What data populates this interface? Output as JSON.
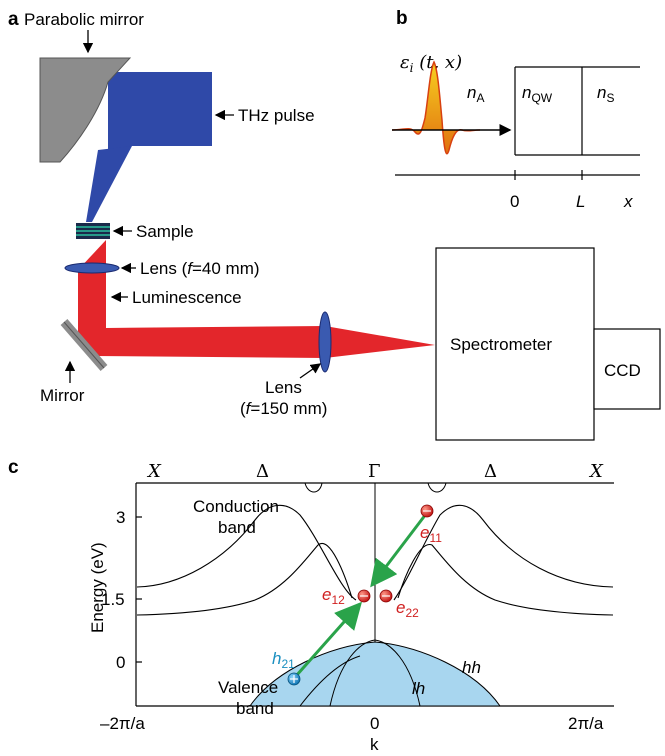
{
  "panel_a": {
    "label": "a",
    "parabolic_mirror": "Parabolic mirror",
    "thz_pulse": "THz pulse",
    "sample": "Sample",
    "lens1_prefix": "Lens (",
    "lens1_var": "f",
    "lens1_suffix": "=40 mm)",
    "luminescence": "Luminescence",
    "mirror": "Mirror",
    "lens2_line1": "Lens",
    "lens2_prefix": "(",
    "lens2_var": "f",
    "lens2_suffix": "=150 mm)",
    "spectrometer": "Spectrometer",
    "ccd": "CCD"
  },
  "panel_b": {
    "label": "b",
    "field_eps": "ε",
    "field_sub": "i",
    "field_args": " (t, x)",
    "n_a": "n",
    "n_a_sub": "A",
    "n_qw": "n",
    "n_qw_sub": "QW",
    "n_s": "n",
    "n_s_sub": "S",
    "tick_0": "0",
    "tick_L": "L",
    "axis_x": "x"
  },
  "panel_c": {
    "label": "c",
    "top_labels": [
      "X",
      "Δ",
      "Γ",
      "Δ",
      "X"
    ],
    "ylabel": "Energy (eV)",
    "yticks": [
      "3",
      "1.5",
      "0"
    ],
    "xticks": [
      "–2π/a",
      "0",
      "2π/a"
    ],
    "xlabel": "k",
    "conduction_1": "Conduction",
    "conduction_2": "band",
    "valence_1": "Valence",
    "valence_2": "band",
    "e11": "e",
    "e11_sub": "11",
    "e12": "e",
    "e12_sub": "12",
    "e22": "e",
    "e22_sub": "22",
    "h21": "h",
    "h21_sub": "21",
    "hh": "hh",
    "lh": "lh"
  },
  "colors": {
    "thz_blue": "#2f49a8",
    "mirror_gray": "#8c8c8c",
    "beam_red": "#e3262b",
    "arrow_green": "#2aa34a",
    "electron_red": "#d02020",
    "hole_blue": "#1a8fc0",
    "valence_fill": "#a8d6ef",
    "pulse_orange": "#f0a020"
  }
}
